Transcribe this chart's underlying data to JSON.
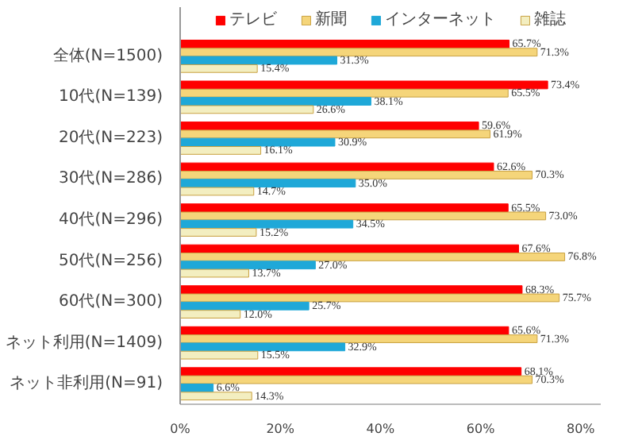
{
  "chart_data": {
    "type": "bar",
    "orientation": "horizontal",
    "categories": [
      "全体(N=1500)",
      "10代(N=139)",
      "20代(N=223)",
      "30代(N=286)",
      "40代(N=296)",
      "50代(N=256)",
      "60代(N=300)",
      "ネット利用(N=1409)",
      "ネット非利用(N=91)"
    ],
    "series": [
      {
        "name": "テレビ",
        "color": "#ff0000",
        "values": [
          65.7,
          73.4,
          59.6,
          62.6,
          65.5,
          67.6,
          68.3,
          65.6,
          68.1
        ],
        "value_labels": [
          "65.7%",
          "73.4%",
          "59.6%",
          "62.6%",
          "65.5%",
          "67.6%",
          "68.3%",
          "65.6%",
          "68.1%"
        ]
      },
      {
        "name": "新聞",
        "color": "#f5d57a",
        "values": [
          71.3,
          65.5,
          61.9,
          70.3,
          73.0,
          76.8,
          75.7,
          71.3,
          70.3
        ],
        "value_labels": [
          "71.3%",
          "65.5%",
          "61.9%",
          "70.3%",
          "73.0%",
          "76.8%",
          "75.7%",
          "71.3%",
          "70.3%"
        ]
      },
      {
        "name": "インターネット",
        "color": "#1fa8d8",
        "values": [
          31.3,
          38.1,
          30.9,
          35.0,
          34.5,
          27.0,
          25.7,
          32.9,
          6.6
        ],
        "value_labels": [
          "31.3%",
          "38.1%",
          "30.9%",
          "35.0%",
          "34.5%",
          "27.0%",
          "25.7%",
          "32.9%",
          "6.6%"
        ]
      },
      {
        "name": "雑誌",
        "color": "#f3eec0",
        "values": [
          15.4,
          26.6,
          16.1,
          14.7,
          15.2,
          13.7,
          12.0,
          15.5,
          14.3
        ],
        "value_labels": [
          "15.4%",
          "26.6%",
          "16.1%",
          "14.7%",
          "15.2%",
          "13.7%",
          "12.0%",
          "15.5%",
          "14.3%"
        ]
      }
    ],
    "xlim": [
      0,
      84
    ],
    "xticks": [
      {
        "value": 0,
        "label": "0%"
      },
      {
        "value": 20,
        "label": "20%"
      },
      {
        "value": 40,
        "label": "40%"
      },
      {
        "value": 60,
        "label": "60%"
      },
      {
        "value": 80,
        "label": "80%"
      }
    ],
    "legend": "top"
  }
}
